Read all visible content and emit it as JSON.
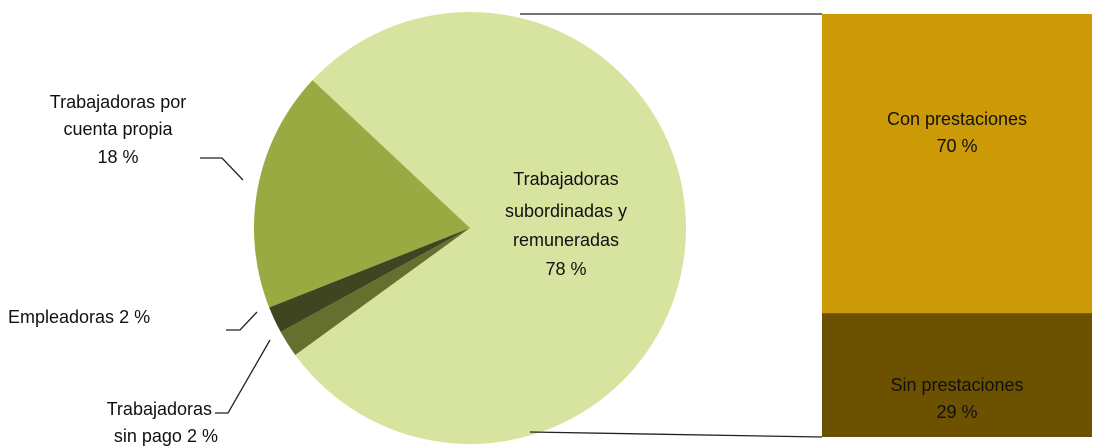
{
  "chart_data": {
    "type": "pie",
    "categories": [
      [
        "Trabajadoras",
        "subordinadas  y",
        "remuneradas"
      ],
      [
        "Trabajadoras  por",
        "cuenta propia"
      ],
      [
        "Empleadoras"
      ],
      [
        "Trabajadoras",
        "sin pago"
      ]
    ],
    "values": [
      78,
      18,
      2,
      2
    ],
    "value_labels": [
      "78 %",
      "18 %",
      "2 %",
      "2 %"
    ],
    "colors": [
      "#d7e4a0",
      "#9aaa42",
      "#3f4520",
      "#66702e"
    ],
    "breakdown": {
      "type": "bar",
      "categories": [
        "Con prestaciones",
        "Sin prestaciones"
      ],
      "values": [
        70,
        29
      ],
      "value_labels": [
        "70 %",
        "29 %"
      ],
      "colors": [
        "#cc9a06",
        "#6c5100"
      ]
    }
  }
}
